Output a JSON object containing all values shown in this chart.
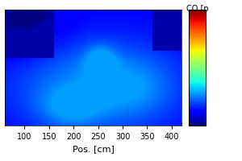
{
  "xlabel": "Pos. [cm]",
  "xlim": [
    60,
    420
  ],
  "ylim": [
    0,
    1
  ],
  "xticks": [
    100,
    150,
    200,
    250,
    300,
    350,
    400
  ],
  "colormap": "jet",
  "colorbar_label": "CO [p",
  "background_color": "#ffffff",
  "figsize": [
    3.0,
    2.0
  ],
  "dpi": 100,
  "vmin": 0.0,
  "vmax": 1.0,
  "data_max": 0.28,
  "comment": "All data in low blue range of jet colormap. Dark blue~0.0-0.05, medium blue~0.12, light cyan~0.22-0.28"
}
